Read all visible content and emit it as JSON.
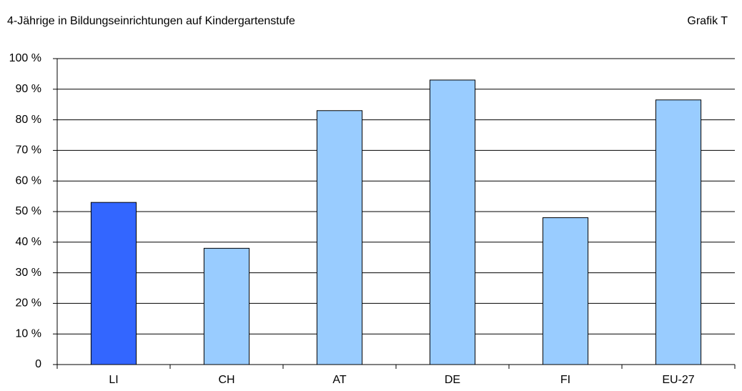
{
  "chart_data": {
    "type": "bar",
    "title": "4-Jährige in Bildungseinrichtungen auf Kindergartenstufe",
    "annotation": "Grafik T",
    "categories": [
      "LI",
      "CH",
      "AT",
      "DE",
      "FI",
      "EU-27"
    ],
    "values": [
      53,
      38,
      83,
      93,
      48,
      86.5
    ],
    "colors": [
      "#3366ff",
      "#99ccff",
      "#99ccff",
      "#99ccff",
      "#99ccff",
      "#99ccff"
    ],
    "ylim": [
      0,
      100
    ],
    "yticks": [
      0,
      {
        "value": 10,
        "label": "10 %"
      },
      {
        "value": 20,
        "label": "20 %"
      },
      {
        "value": 30,
        "label": "30 %"
      },
      {
        "value": 40,
        "label": "40 %"
      },
      {
        "value": 50,
        "label": "50 %"
      },
      {
        "value": 60,
        "label": "60 %"
      },
      {
        "value": 70,
        "label": "70 %"
      },
      {
        "value": 80,
        "label": "80 %"
      },
      {
        "value": 90,
        "label": "90 %"
      },
      {
        "value": 100,
        "label": "100 %"
      }
    ],
    "grid": true
  }
}
